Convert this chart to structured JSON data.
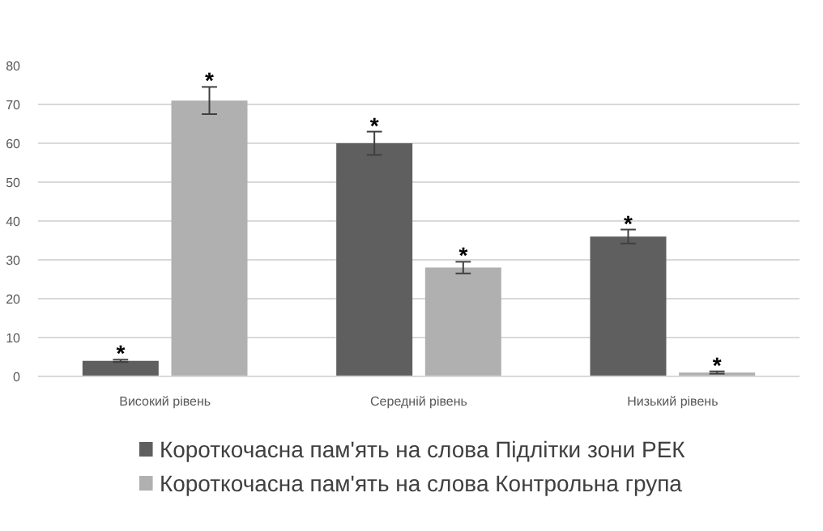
{
  "chart_data": {
    "type": "bar",
    "categories": [
      "Високий рівень",
      "Середній рівень",
      "Низький рівень"
    ],
    "series": [
      {
        "name": "Короткочасна пам'ять на слова Підлітки зони РЕК",
        "color": "#5f5f5f",
        "values": [
          4,
          60,
          36
        ],
        "errors": [
          0.3,
          3,
          1.8
        ],
        "value_labels": [
          "*",
          "*",
          "*"
        ]
      },
      {
        "name": "Короткочасна пам'ять на слова Контрольна група",
        "color": "#b0b0b0",
        "values": [
          71,
          28,
          1
        ],
        "errors": [
          3.5,
          1.5,
          0.3
        ],
        "value_labels": [
          "*",
          "*",
          "*"
        ]
      }
    ],
    "ylim": [
      0,
      80
    ],
    "yticks": [
      0,
      10,
      20,
      30,
      40,
      50,
      60,
      70,
      80
    ],
    "grid": "y",
    "legend": "bottom"
  }
}
